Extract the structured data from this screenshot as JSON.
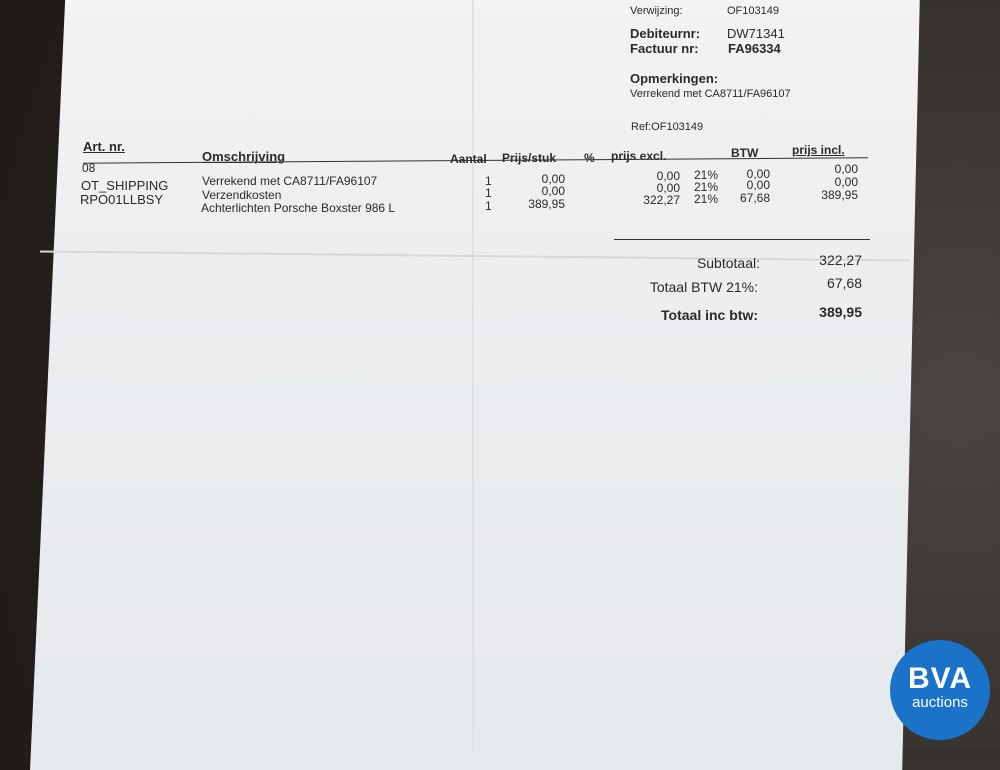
{
  "header": {
    "verwijzing_label": "Verwijzing:",
    "verwijzing_value": "OF103149",
    "debiteur_label": "Debiteurnr:",
    "debiteur_value": "DW71341",
    "factuur_label": "Factuur nr:",
    "factuur_value": "FA96334",
    "opmerkingen_label": "Opmerkingen:",
    "opmerkingen_value": "Verrekend met CA8711/FA96107",
    "ref": "Ref:OF103149"
  },
  "table": {
    "columns": [
      "Art. nr.",
      "Omschrijving",
      "Aantal",
      "Prijs/stuk",
      "%",
      "prijs excl.",
      "BTW",
      "prijs incl."
    ],
    "rows": [
      {
        "art": "08",
        "desc": "Verrekend met CA8711/FA96107",
        "qty": "1",
        "price": "0,00",
        "excl": "0,00",
        "pct": "21%",
        "btw": "0,00",
        "incl": "0,00"
      },
      {
        "art": "OT_SHIPPING",
        "desc": "Verzendkosten",
        "qty": "1",
        "price": "0,00",
        "excl": "0,00",
        "pct": "21%",
        "btw": "0,00",
        "incl": "0,00"
      },
      {
        "art": "RPO01LLBSY",
        "desc": "Achterlichten Porsche Boxster 986 L",
        "qty": "1",
        "price": "389,95",
        "excl": "322,27",
        "pct": "21%",
        "btw": "67,68",
        "incl": "389,95"
      }
    ]
  },
  "totals": {
    "subtotaal_label": "Subtotaal:",
    "subtotaal_value": "322,27",
    "btw_label": "Totaal BTW 21%:",
    "btw_value": "67,68",
    "total_label": "Totaal inc btw:",
    "total_value": "389,95"
  },
  "logo": {
    "line1": "BVA",
    "line2": "auctions",
    "color": "#1a73c9"
  }
}
